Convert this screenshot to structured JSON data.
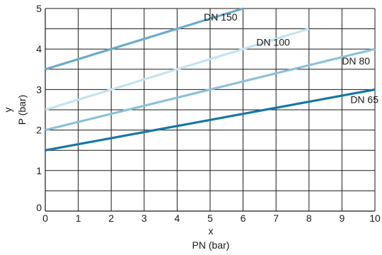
{
  "chart_data": {
    "type": "line",
    "xlabel_var": "x",
    "xlabel": "PN (bar)",
    "ylabel_var": "y",
    "ylabel": "P (bar)",
    "xlim": [
      0,
      10
    ],
    "ylim": [
      0,
      5
    ],
    "x_ticks": [
      "0",
      "1",
      "2",
      "3",
      "4",
      "5",
      "6",
      "7",
      "8",
      "9",
      "10"
    ],
    "y_ticks": [
      "0",
      "1",
      "2",
      "3",
      "4",
      "5"
    ],
    "grid": true,
    "series": [
      {
        "name": "DN 150",
        "x": [
          0,
          6
        ],
        "y": [
          3.5,
          5.0
        ],
        "color": "#6aaccc"
      },
      {
        "name": "DN 100",
        "x": [
          0,
          8
        ],
        "y": [
          2.5,
          4.5
        ],
        "color": "#c6e3f0"
      },
      {
        "name": "DN 80",
        "x": [
          0,
          10
        ],
        "y": [
          2.0,
          4.0
        ],
        "color": "#8ec0d9"
      },
      {
        "name": "DN 65",
        "x": [
          0,
          10
        ],
        "y": [
          1.5,
          3.0
        ],
        "color": "#1677a6"
      }
    ]
  }
}
